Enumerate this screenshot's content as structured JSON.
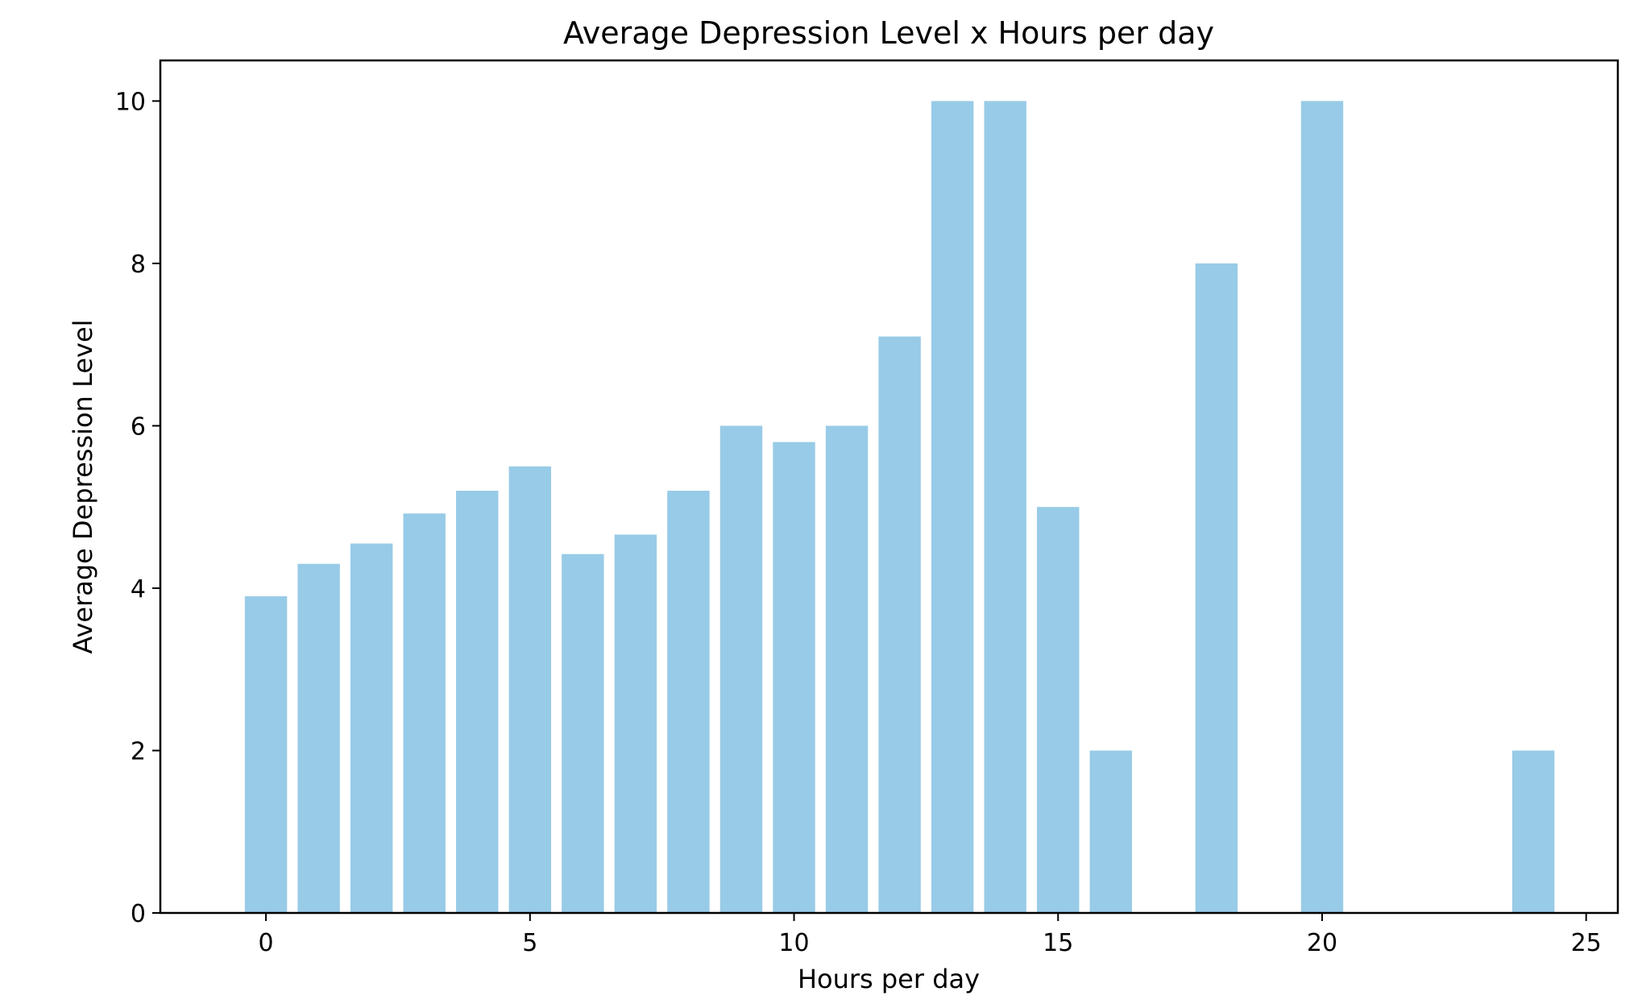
{
  "chart_data": {
    "type": "bar",
    "title": "Average Depression Level x Hours per day",
    "xlabel": "Hours per day",
    "ylabel": "Average Depression Level",
    "x": [
      0,
      1,
      2,
      3,
      4,
      5,
      6,
      7,
      8,
      9,
      10,
      11,
      12,
      13,
      14,
      15,
      16,
      18,
      20,
      24
    ],
    "values": [
      3.9,
      4.3,
      4.55,
      4.92,
      5.2,
      5.5,
      4.42,
      4.66,
      5.2,
      6.0,
      5.8,
      6.0,
      7.1,
      10.0,
      10.0,
      5.0,
      2.0,
      8.0,
      10.0,
      2.0
    ],
    "xlim": [
      -2,
      25.6
    ],
    "ylim": [
      0,
      10.5
    ],
    "xticks": [
      "0",
      "5",
      "10",
      "15",
      "20",
      "25"
    ],
    "yticks": [
      "0",
      "2",
      "4",
      "6",
      "8",
      "10"
    ],
    "bar_color": "#98cbe7",
    "grid": false
  }
}
